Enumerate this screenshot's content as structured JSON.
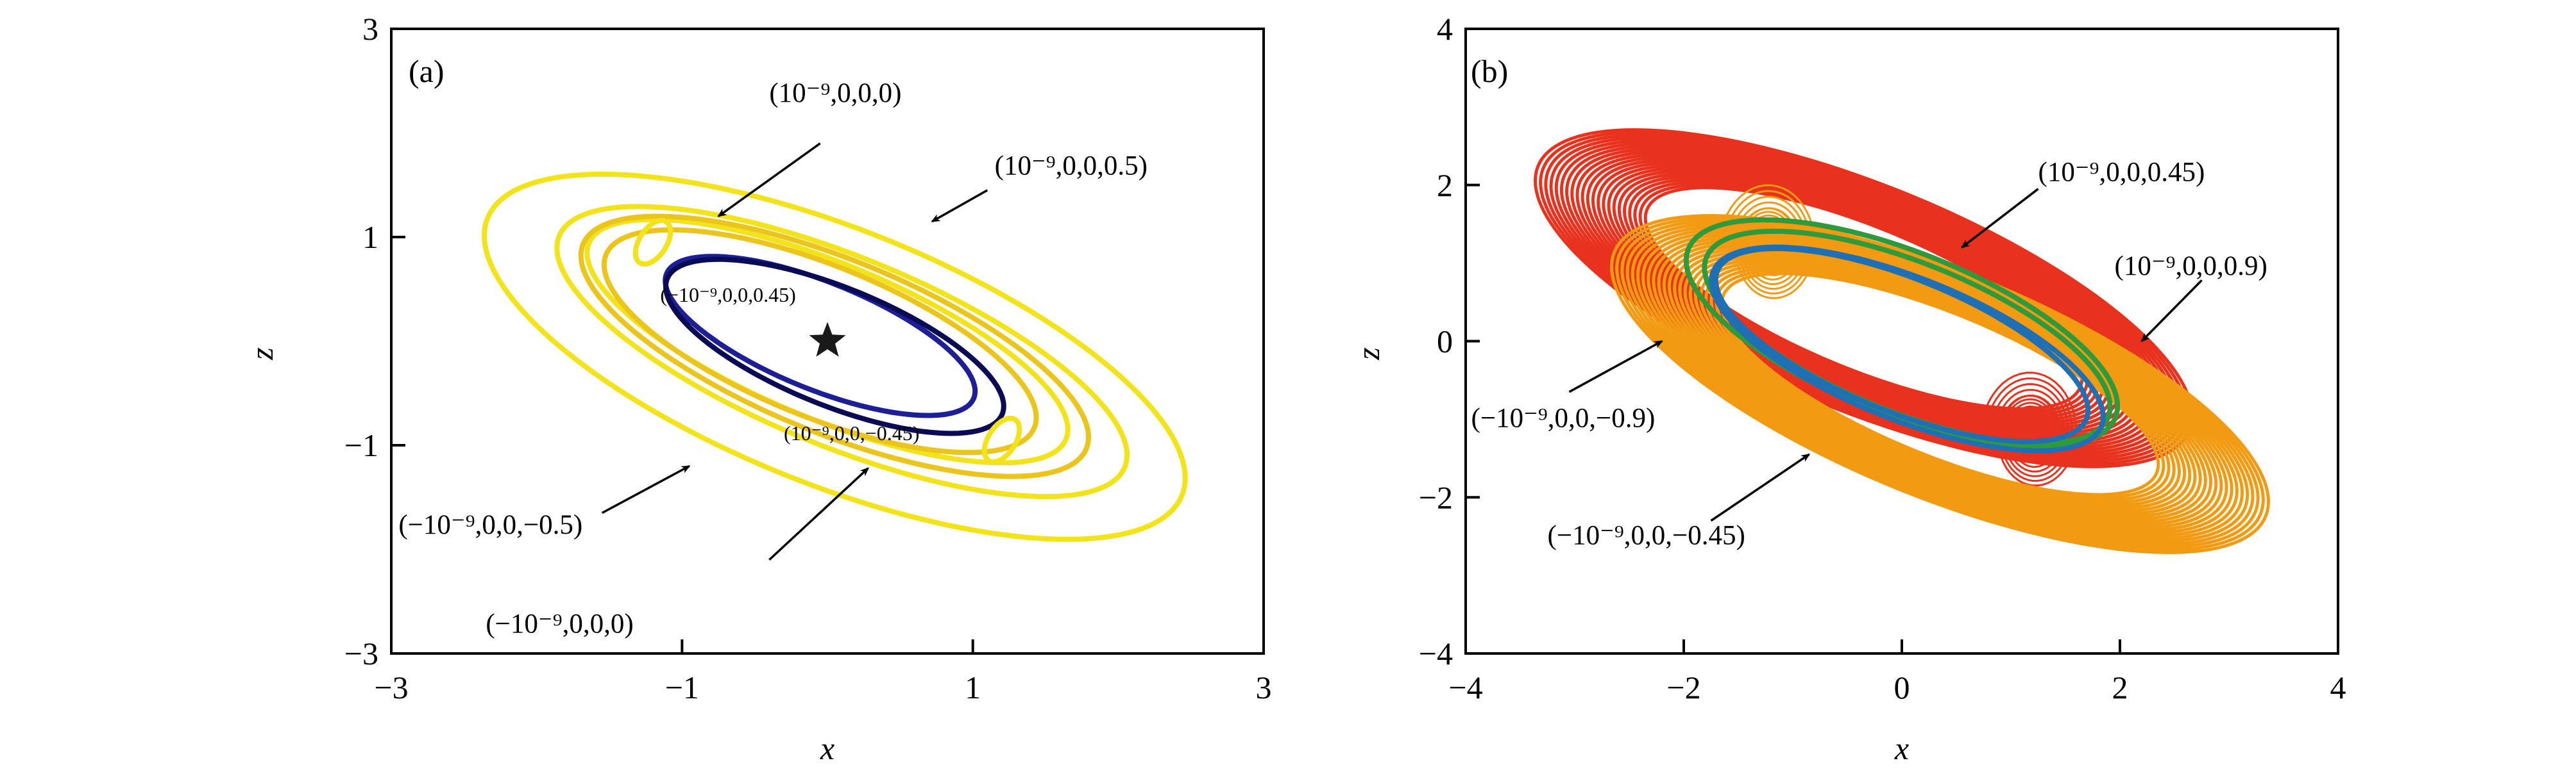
{
  "chart_data": [
    {
      "panel": "(a)",
      "type": "line",
      "xlabel": "x",
      "ylabel": "z",
      "xlim": [
        -3,
        3
      ],
      "ylim": [
        -3,
        3
      ],
      "xticks": [
        "−3",
        "−1",
        "1",
        "3"
      ],
      "yticks": [
        "3",
        "1",
        "−1",
        "−3"
      ],
      "xtick_values": [
        -3,
        -1,
        1,
        3
      ],
      "ytick_values": [
        3,
        1,
        -1,
        -3
      ],
      "grid": false,
      "marker": {
        "name": "star",
        "x": 0.0,
        "y": 0.0,
        "color": "#1a1a1a"
      },
      "curves": [
        {
          "color": "#f2e31a",
          "loops": [
            {
              "cx": 0.05,
              "cy": -0.15,
              "a": 2.75,
              "b": 1.15,
              "angle": -32
            },
            {
              "cx": 0.1,
              "cy": -0.1,
              "a": 2.25,
              "b": 0.85,
              "angle": -32
            },
            {
              "cx": 0.0,
              "cy": 0.0,
              "a": 1.9,
              "b": 0.7,
              "angle": -32
            }
          ]
        },
        {
          "color": "#ebc51c",
          "loops": [
            {
              "cx": -0.05,
              "cy": 0.0,
              "a": 1.7,
              "b": 0.68,
              "angle": -32
            },
            {
              "cx": 0.05,
              "cy": -0.05,
              "a": 2.0,
              "b": 0.78,
              "angle": -32
            }
          ]
        },
        {
          "color": "#1e1e96",
          "loops": [
            {
              "cx": -0.05,
              "cy": 0.05,
              "a": 1.22,
              "b": 0.48,
              "angle": -32
            }
          ]
        },
        {
          "color": "#0a0a55",
          "loops": [
            {
              "cx": 0.05,
              "cy": -0.05,
              "a": 1.33,
              "b": 0.53,
              "angle": -32
            }
          ]
        }
      ],
      "annotations": [
        {
          "text": "(10⁻⁹,0,0,0)",
          "text_x": -0.4,
          "text_y": 2.3,
          "arrow_from": [
            -0.05,
            1.9
          ],
          "arrow_to": [
            -0.75,
            1.2
          ]
        },
        {
          "text": "(10⁻⁹,0,0,0.5)",
          "text_x": 1.15,
          "text_y": 1.6,
          "arrow_from": [
            1.1,
            1.45
          ],
          "arrow_to": [
            0.72,
            1.15
          ]
        },
        {
          "text": "(−10⁻⁹,0,0,0.45)",
          "text_x": -1.15,
          "text_y": 0.38,
          "small": true
        },
        {
          "text": "(10⁻⁹,0,0,−0.45)",
          "text_x": -0.3,
          "text_y": -0.95,
          "small": true
        },
        {
          "text": "(−10⁻⁹,0,0,−0.5)",
          "text_x": -2.95,
          "text_y": -1.85,
          "arrow_from": [
            -1.55,
            -1.65
          ],
          "arrow_to": [
            -0.95,
            -1.2
          ]
        },
        {
          "text": "(−10⁻⁹,0,0,0)",
          "text_x": -2.35,
          "text_y": -2.8,
          "arrow_from": [
            -0.4,
            -2.1
          ],
          "arrow_to": [
            0.28,
            -1.22
          ]
        }
      ]
    },
    {
      "panel": "(b)",
      "type": "line",
      "xlabel": "x",
      "ylabel": "z",
      "xlim": [
        -4,
        4
      ],
      "ylim": [
        -4,
        4
      ],
      "xticks": [
        "−4",
        "−2",
        "0",
        "2",
        "4"
      ],
      "yticks": [
        "4",
        "2",
        "0",
        "−2",
        "−4"
      ],
      "xtick_values": [
        -4,
        -2,
        0,
        2,
        4
      ],
      "ytick_values": [
        4,
        2,
        0,
        -2,
        -4
      ],
      "grid": false,
      "bands": [
        {
          "color": "#e8321e",
          "cx": -0.35,
          "cy": 0.55,
          "a_range": [
            2.3,
            3.45
          ],
          "b_range": [
            0.85,
            1.35
          ],
          "angle": -32,
          "wings": [
            [
              1.2,
              -1.2
            ]
          ]
        },
        {
          "color": "#f29a12",
          "cx": 0.35,
          "cy": -0.55,
          "a_range": [
            2.3,
            3.45
          ],
          "b_range": [
            0.85,
            1.35
          ],
          "angle": -32,
          "wings": [
            [
              -1.2,
              1.2
            ]
          ]
        }
      ],
      "curves": [
        {
          "color": "#2e9a3c",
          "loops": [
            {
              "cx": 0.0,
              "cy": 0.1,
              "a": 2.25,
              "b": 0.98,
              "angle": -32
            },
            {
              "cx": 0.05,
              "cy": 0.05,
              "a": 2.12,
              "b": 0.9,
              "angle": -32
            }
          ]
        },
        {
          "color": "#1f6fb5",
          "loops": [
            {
              "cx": 0.05,
              "cy": -0.1,
              "a": 2.05,
              "b": 0.85,
              "angle": -32
            },
            {
              "cx": 0.0,
              "cy": -0.05,
              "a": 1.95,
              "b": 0.8,
              "angle": -32
            }
          ]
        }
      ],
      "annotations": [
        {
          "text": "(10⁻⁹,0,0,0.45)",
          "text_x": 1.25,
          "text_y": 2.05,
          "arrow_from": [
            1.25,
            1.95
          ],
          "arrow_to": [
            0.55,
            1.2
          ]
        },
        {
          "text": "(10⁻⁹,0,0,0.9)",
          "text_x": 1.95,
          "text_y": 0.85,
          "arrow_from": [
            2.75,
            0.78
          ],
          "arrow_to": [
            2.2,
            0.0
          ]
        },
        {
          "text": "(−10⁻⁹,0,0,−0.9)",
          "text_x": -3.95,
          "text_y": -1.1,
          "arrow_from": [
            -3.05,
            -0.65
          ],
          "arrow_to": [
            -2.2,
            0.0
          ]
        },
        {
          "text": "(−10⁻⁹,0,0,−0.45)",
          "text_x": -3.25,
          "text_y": -2.6,
          "arrow_from": [
            -1.75,
            -2.3
          ],
          "arrow_to": [
            -0.85,
            -1.45
          ]
        }
      ]
    }
  ]
}
